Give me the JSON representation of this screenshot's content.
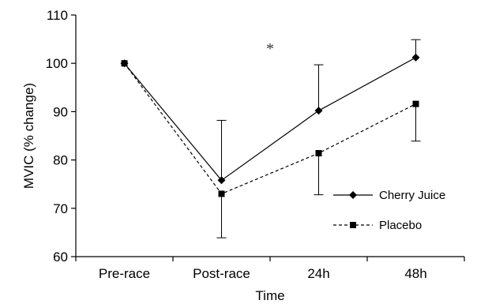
{
  "chart_data": {
    "type": "line",
    "title": "",
    "xlabel": "Time",
    "ylabel": "MVIC (% change)",
    "categories": [
      "Pre-race",
      "Post-race",
      "24h",
      "48h"
    ],
    "ylim": [
      60,
      110
    ],
    "yticks": [
      60,
      70,
      80,
      90,
      100,
      110
    ],
    "grid": false,
    "legend_position": "bottom-right",
    "series": [
      {
        "name": "Cherry Juice",
        "values": [
          100,
          75.8,
          90.2,
          101.2
        ],
        "error_upper": [
          null,
          88.2,
          99.7,
          104.9
        ],
        "marker": "diamond",
        "line_style": "solid",
        "color": "#000000"
      },
      {
        "name": "Placebo",
        "values": [
          100,
          73,
          81.4,
          91.6
        ],
        "error_lower": [
          null,
          63.9,
          72.8,
          83.9
        ],
        "marker": "square",
        "line_style": "dashed",
        "color": "#000000"
      }
    ],
    "annotations": [
      {
        "text": "*",
        "category": "Post-race",
        "offset": 0.5,
        "y": 102
      }
    ]
  }
}
